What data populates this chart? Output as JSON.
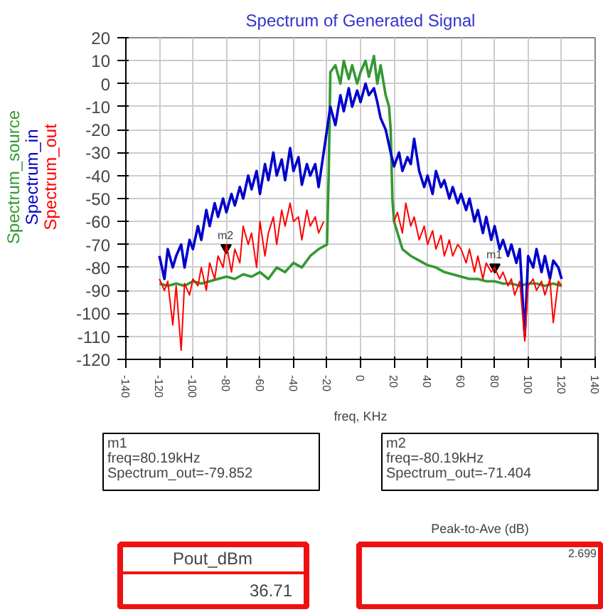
{
  "chart_data": {
    "type": "line",
    "title": "Spectrum of Generated Signal",
    "xlabel": "freq, KHz",
    "xlim": [
      -140,
      140
    ],
    "ylim": [
      -120,
      20
    ],
    "xticks": [
      -140,
      -120,
      -100,
      -80,
      -60,
      -40,
      -20,
      0,
      20,
      40,
      60,
      80,
      100,
      120,
      140
    ],
    "yticks": [
      -120,
      -110,
      -100,
      -90,
      -80,
      -70,
      -60,
      -50,
      -40,
      -30,
      -20,
      -10,
      0,
      10,
      20
    ],
    "grid": true,
    "series": [
      {
        "name": "Spectrum_source",
        "color": "#339933",
        "x": [
          -120,
          -115,
          -110,
          -105,
          -100,
          -95,
          -90,
          -85,
          -80,
          -75,
          -70,
          -65,
          -60,
          -55,
          -50,
          -45,
          -40,
          -35,
          -30,
          -25,
          -20,
          -19,
          -18,
          -15,
          -12,
          -10,
          -7,
          -5,
          -2,
          0,
          3,
          5,
          8,
          10,
          12,
          15,
          17,
          18,
          19,
          20,
          25,
          30,
          35,
          40,
          45,
          50,
          55,
          60,
          65,
          70,
          75,
          80,
          85,
          90,
          95,
          100,
          105,
          110,
          115,
          120
        ],
        "values": [
          -87,
          -88,
          -87,
          -88,
          -86,
          -87,
          -86,
          -85,
          -84,
          -85,
          -83,
          -84,
          -82,
          -85,
          -80,
          -82,
          -78,
          -80,
          -75,
          -72,
          -70,
          -40,
          5,
          8,
          0,
          10,
          2,
          8,
          0,
          5,
          10,
          3,
          12,
          0,
          8,
          -5,
          -10,
          -20,
          -50,
          -60,
          -72,
          -75,
          -77,
          -79,
          -80,
          -82,
          -83,
          -84,
          -85,
          -85,
          -86,
          -86,
          -87,
          -87,
          -88,
          -87,
          -87,
          -88,
          -87,
          -88
        ]
      },
      {
        "name": "Spectrum_in",
        "color": "#0000cc",
        "x": [
          -120,
          -117,
          -115,
          -112,
          -110,
          -107,
          -105,
          -102,
          -100,
          -97,
          -95,
          -92,
          -90,
          -87,
          -85,
          -82,
          -80,
          -77,
          -75,
          -72,
          -70,
          -67,
          -65,
          -62,
          -60,
          -57,
          -55,
          -52,
          -50,
          -47,
          -45,
          -42,
          -40,
          -37,
          -35,
          -32,
          -30,
          -27,
          -25,
          -22,
          -20,
          -18,
          -15,
          -12,
          -10,
          -7,
          -5,
          -2,
          0,
          3,
          5,
          8,
          10,
          12,
          15,
          18,
          20,
          23,
          25,
          28,
          30,
          32,
          35,
          38,
          40,
          43,
          45,
          48,
          50,
          53,
          55,
          58,
          60,
          63,
          65,
          68,
          70,
          73,
          75,
          78,
          80,
          83,
          85,
          88,
          90,
          93,
          95,
          98,
          100,
          103,
          105,
          108,
          110,
          113,
          115,
          118,
          120
        ],
        "values": [
          -75,
          -85,
          -72,
          -80,
          -75,
          -70,
          -80,
          -68,
          -72,
          -62,
          -68,
          -55,
          -62,
          -52,
          -58,
          -50,
          -56,
          -48,
          -53,
          -45,
          -50,
          -40,
          -46,
          -38,
          -48,
          -35,
          -42,
          -30,
          -40,
          -33,
          -42,
          -28,
          -38,
          -32,
          -44,
          -35,
          -40,
          -35,
          -45,
          -30,
          -20,
          -10,
          -18,
          -5,
          -12,
          -2,
          -10,
          -3,
          -8,
          0,
          -5,
          -2,
          -8,
          -15,
          -20,
          -30,
          -36,
          -30,
          -38,
          -32,
          -35,
          -24,
          -38,
          -45,
          -40,
          -48,
          -38,
          -45,
          -42,
          -50,
          -45,
          -52,
          -48,
          -55,
          -50,
          -60,
          -55,
          -65,
          -58,
          -68,
          -62,
          -72,
          -68,
          -75,
          -70,
          -78,
          -72,
          -110,
          -75,
          -80,
          -72,
          -82,
          -75,
          -85,
          -77,
          -80,
          -85
        ]
      },
      {
        "name": "Spectrum_out",
        "color": "#ff0000",
        "x": [
          -120,
          -117,
          -115,
          -112,
          -110,
          -107,
          -105,
          -102,
          -100,
          -97,
          -95,
          -92,
          -90,
          -87,
          -85,
          -82,
          -80,
          -77,
          -75,
          -72,
          -70,
          -67,
          -65,
          -62,
          -60,
          -57,
          -55,
          -52,
          -50,
          -47,
          -45,
          -42,
          -40,
          -37,
          -35,
          -32,
          -30,
          -27,
          -25,
          -22,
          0,
          20,
          22,
          25,
          27,
          30,
          32,
          35,
          38,
          40,
          43,
          45,
          48,
          50,
          53,
          55,
          58,
          60,
          63,
          65,
          68,
          70,
          73,
          75,
          78,
          80,
          83,
          85,
          88,
          90,
          92,
          95,
          98,
          100,
          103,
          105,
          108,
          110,
          113,
          115,
          118,
          120
        ],
        "values": [
          -85,
          -90,
          -86,
          -105,
          -88,
          -116,
          -87,
          -92,
          -85,
          -88,
          -80,
          -90,
          -78,
          -85,
          -75,
          -80,
          -70,
          -82,
          -72,
          -78,
          -62,
          -70,
          -65,
          -80,
          -60,
          -75,
          -65,
          -58,
          -70,
          -55,
          -62,
          -52,
          -60,
          -58,
          -68,
          -55,
          -62,
          -58,
          -65,
          -60,
          null,
          -60,
          -56,
          -65,
          -52,
          -62,
          -58,
          -68,
          -62,
          -70,
          -64,
          -72,
          -66,
          -75,
          -68,
          -75,
          -70,
          -72,
          -78,
          -72,
          -82,
          -75,
          -85,
          -78,
          -82,
          -80,
          -85,
          -82,
          -88,
          -85,
          -92,
          -86,
          -112,
          -88,
          -85,
          -90,
          -86,
          -92,
          -85,
          -104,
          -86,
          -88
        ]
      }
    ],
    "annotations": [
      {
        "text": "m1",
        "x": 80.19,
        "y": -79.852
      },
      {
        "text": "m2",
        "x": -80.19,
        "y": -71.404
      },
      "m1\nfreq=80.19kHz\nSpectrum_out=-79.852",
      "m2\nfreq=-80.19kHz\nSpectrum_out=-71.404",
      "Pout_dBm",
      "36.71",
      "Peak-to-Ave (dB)",
      "2.699"
    ]
  }
}
